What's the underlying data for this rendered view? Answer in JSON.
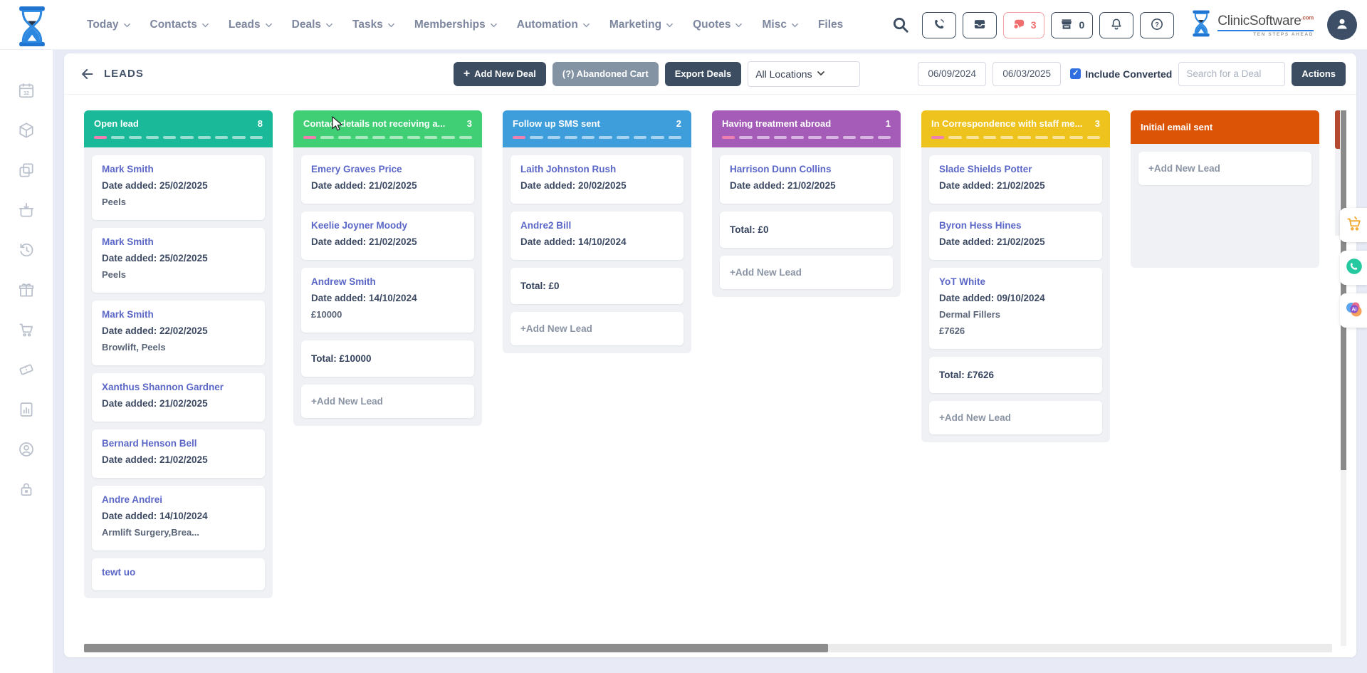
{
  "nav": {
    "items": [
      {
        "label": "Today",
        "chevron": true
      },
      {
        "label": "Contacts",
        "chevron": true
      },
      {
        "label": "Leads",
        "chevron": true
      },
      {
        "label": "Deals",
        "chevron": true
      },
      {
        "label": "Tasks",
        "chevron": true
      },
      {
        "label": "Memberships",
        "chevron": true
      },
      {
        "label": "Automation",
        "chevron": true
      },
      {
        "label": "Marketing",
        "chevron": true
      },
      {
        "label": "Quotes",
        "chevron": true
      },
      {
        "label": "Misc",
        "chevron": true
      },
      {
        "label": "Files",
        "chevron": false
      }
    ]
  },
  "topbar": {
    "chat_count": "3",
    "store_count": "0",
    "brand": {
      "name": "ClinicSoftware",
      "suffix": ".com",
      "tagline": "TEN STEPS AHEAD"
    },
    "icons": [
      "search-icon",
      "phone-icon",
      "inbox-icon",
      "chat-icon",
      "store-icon",
      "bell-icon",
      "help-icon",
      "avatar"
    ]
  },
  "header": {
    "title": "LEADS",
    "add_new_deal": "Add New Deal",
    "abandoned_cart": "(?) Abandoned Cart",
    "export_deals": "Export Deals",
    "actions": "Actions",
    "location_select": "All Locations",
    "date_from": "06/09/2024",
    "date_to": "06/03/2025",
    "include_converted": {
      "label": "Include Converted",
      "checked": true
    },
    "search_placeholder": "Search for a Deal"
  },
  "sidebar": {
    "icons": [
      "calendar-icon",
      "package-icon",
      "copy-icon",
      "checkin-icon",
      "history-icon",
      "gift-icon",
      "cart-icon",
      "ticket-icon",
      "report-icon",
      "account-icon",
      "lock-icon"
    ]
  },
  "board": {
    "add_new_label": "+Add New Lead",
    "next_column_peek_color": "#b5492f",
    "columns": [
      {
        "title": "Open lead",
        "count": "8",
        "color": "#1ab99a",
        "dashes": 10,
        "cards": [
          {
            "name": "Mark Smith",
            "date": "Date added: 25/02/2025",
            "lines": [
              "Peels"
            ]
          },
          {
            "name": "Mark Smith",
            "date": "Date added: 25/02/2025",
            "lines": [
              "Peels"
            ]
          },
          {
            "name": "Mark Smith",
            "date": "Date added: 22/02/2025",
            "lines": [
              "Browlift, Peels"
            ]
          },
          {
            "name": "Xanthus Shannon Gardner",
            "date": "Date added: 21/02/2025",
            "lines": []
          },
          {
            "name": "Bernard Henson Bell",
            "date": "Date added: 21/02/2025",
            "lines": []
          },
          {
            "name": "Andre Andrei",
            "date": "Date added: 14/10/2024",
            "lines": [
              "Armlift Surgery,Brea..."
            ]
          },
          {
            "name": "tewt uo",
            "date": "",
            "lines": []
          }
        ],
        "total": null,
        "add_new": false
      },
      {
        "title": "Contact details not receiving a...",
        "count": "3",
        "color": "#40cf74",
        "dashes": 10,
        "cards": [
          {
            "name": "Emery Graves Price",
            "date": "Date added: 21/02/2025",
            "lines": []
          },
          {
            "name": "Keelie Joyner Moody",
            "date": "Date added: 21/02/2025",
            "lines": []
          },
          {
            "name": "Andrew Smith",
            "date": "Date added: 14/10/2024",
            "lines": [
              "£10000"
            ]
          }
        ],
        "total": "Total: £10000",
        "add_new": true
      },
      {
        "title": "Follow up SMS sent",
        "count": "2",
        "color": "#3e9edb",
        "dashes": 10,
        "cards": [
          {
            "name": "Laith Johnston Rush",
            "date": "Date added: 20/02/2025",
            "lines": []
          },
          {
            "name": "Andre2 Bill",
            "date": "Date added: 14/10/2024",
            "lines": []
          }
        ],
        "total": "Total: £0",
        "add_new": true
      },
      {
        "title": "Having treatment abroad",
        "count": "1",
        "color": "#a55cb8",
        "dashes": 10,
        "cards": [
          {
            "name": "Harrison Dunn Collins",
            "date": "Date added: 21/02/2025",
            "lines": []
          }
        ],
        "total": "Total: £0",
        "add_new": true
      },
      {
        "title": "In Correspondence with staff me...",
        "count": "3",
        "color": "#efc31d",
        "dashes": 10,
        "cards": [
          {
            "name": "Slade Shields Potter",
            "date": "Date added: 21/02/2025",
            "lines": []
          },
          {
            "name": "Byron Hess Hines",
            "date": "Date added: 21/02/2025",
            "lines": []
          },
          {
            "name": "YoT White",
            "date": "Date added: 09/10/2024",
            "lines": [
              "Dermal Fillers",
              "£7626"
            ]
          }
        ],
        "total": "Total: £7626",
        "add_new": true
      },
      {
        "title": "Initial email sent",
        "count": "",
        "color": "#dc5405",
        "dashes": 0,
        "cards": [],
        "total": null,
        "add_new": true,
        "tall_body": true
      }
    ]
  },
  "floating": {
    "items": [
      {
        "icon": "cart-orange-icon"
      },
      {
        "icon": "whatsapp-icon"
      },
      {
        "icon": "ai-icon"
      }
    ]
  },
  "colors": {
    "accent_navy": "#3c4d62",
    "dash_pink": "#f07fb1",
    "checkbox_blue": "#2f6fe0",
    "chat_red": "#f26d6d",
    "card_name_blue": "#5b67c7"
  }
}
